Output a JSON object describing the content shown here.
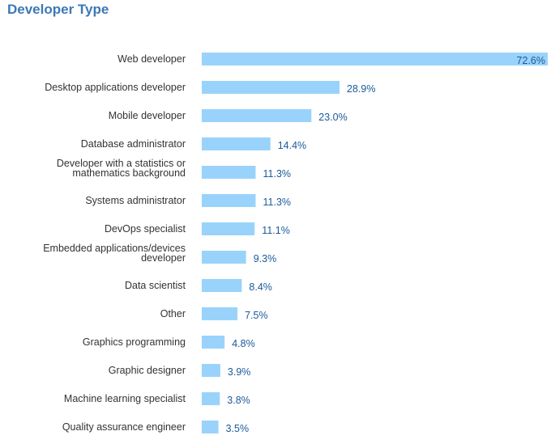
{
  "title": "Developer Type",
  "colors": {
    "title": "#3c78b4",
    "bar": "#99d3fb",
    "value_text": "#1a5a9a",
    "label_text": "#333333"
  },
  "chart_data": {
    "type": "bar",
    "orientation": "horizontal",
    "title": "Developer Type",
    "xlabel": "",
    "ylabel": "",
    "xlim": [
      0,
      72.6
    ],
    "grid": false,
    "legend": "none",
    "value_format": "percent_1dp",
    "categories": [
      [
        "Web developer"
      ],
      [
        "Desktop applications developer"
      ],
      [
        "Mobile developer"
      ],
      [
        "Database administrator"
      ],
      [
        "Developer with a statistics or",
        "mathematics background"
      ],
      [
        "Systems administrator"
      ],
      [
        "DevOps specialist"
      ],
      [
        "Embedded applications/devices",
        "developer"
      ],
      [
        "Data scientist"
      ],
      [
        "Other"
      ],
      [
        "Graphics programming"
      ],
      [
        "Graphic designer"
      ],
      [
        "Machine learning specialist"
      ],
      [
        "Quality assurance engineer"
      ]
    ],
    "values": [
      72.6,
      28.9,
      23.0,
      14.4,
      11.3,
      11.3,
      11.1,
      9.3,
      8.4,
      7.5,
      4.8,
      3.9,
      3.8,
      3.5
    ],
    "value_labels": [
      "72.6%",
      "28.9%",
      "23.0%",
      "14.4%",
      "11.3%",
      "11.3%",
      "11.1%",
      "9.3%",
      "8.4%",
      "7.5%",
      "4.8%",
      "3.9%",
      "3.8%",
      "3.5%"
    ]
  }
}
